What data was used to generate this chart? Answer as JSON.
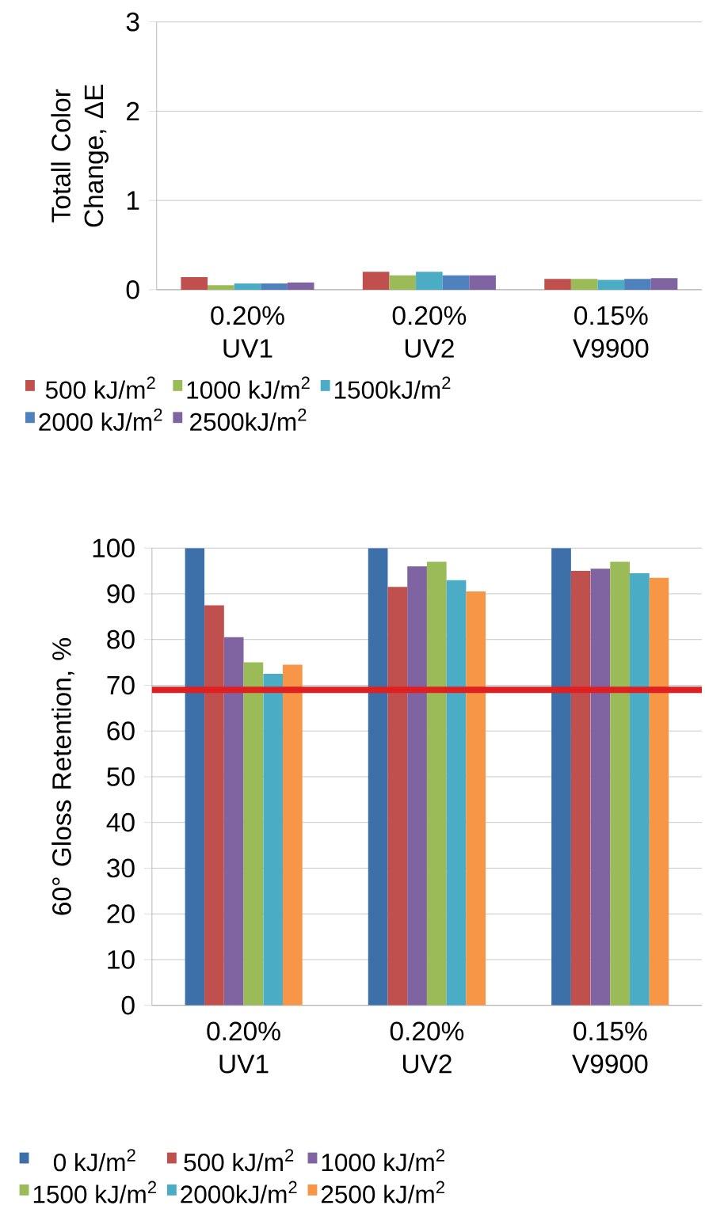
{
  "chart_data": [
    {
      "type": "bar",
      "ylabel": "Totall Color Change, ΔE",
      "categories": [
        "0.20% UV1",
        "0.20% UV2",
        "0.15% V9900"
      ],
      "ylim": [
        0,
        3
      ],
      "yticks": [
        0,
        1,
        2,
        3
      ],
      "grid": "y",
      "legend": "bottom",
      "series": [
        {
          "name": "500 kJ/m$^{2}$",
          "color": "#c0504d",
          "values": [
            0.14,
            0.2,
            0.12
          ]
        },
        {
          "name": "1000 kJ/m$^{2}$",
          "color": "#9bbb59",
          "values": [
            0.05,
            0.16,
            0.12
          ]
        },
        {
          "name": "1500kJ/m$^{2}$",
          "color": "#4bacc6",
          "values": [
            0.07,
            0.2,
            0.11
          ]
        },
        {
          "name": "2000 kJ/m$^{2}$",
          "color": "#4f81bd",
          "values": [
            0.07,
            0.16,
            0.12
          ]
        },
        {
          "name": "2500kJ/m$^{2}$",
          "color": "#8064a2",
          "values": [
            0.08,
            0.16,
            0.13
          ]
        }
      ]
    },
    {
      "type": "bar",
      "ylabel": "60° Gloss Retention, %",
      "categories": [
        "0.20% UV1",
        "0.20% UV2",
        "0.15% V9900"
      ],
      "ylim": [
        0,
        100
      ],
      "yticks": [
        0,
        10,
        20,
        30,
        40,
        50,
        60,
        70,
        80,
        90,
        100
      ],
      "grid": "y",
      "legend": "bottom",
      "ref_lines": [
        {
          "axis": "y",
          "value": 69,
          "color": "#e02020"
        }
      ],
      "series": [
        {
          "name": "0 kJ/m$^{2}$",
          "color": "#3d6fa8",
          "values": [
            100,
            100,
            100
          ]
        },
        {
          "name": "500 kJ/m$^{2}$",
          "color": "#c0504d",
          "values": [
            87.5,
            91.5,
            95
          ]
        },
        {
          "name": "1000 kJ/m$^{2}$",
          "color": "#8064a2",
          "values": [
            80.5,
            96,
            95.5
          ]
        },
        {
          "name": "1500 kJ/m$^{2}$",
          "color": "#9bbb59",
          "values": [
            75,
            97,
            97
          ]
        },
        {
          "name": "2000kJ/m$^{2}$",
          "color": "#4bacc6",
          "values": [
            72.5,
            93,
            94.5
          ]
        },
        {
          "name": "2500 kJ/m$^{2}$",
          "color": "#f79646",
          "values": [
            74.5,
            90.5,
            93.5
          ]
        }
      ]
    }
  ]
}
